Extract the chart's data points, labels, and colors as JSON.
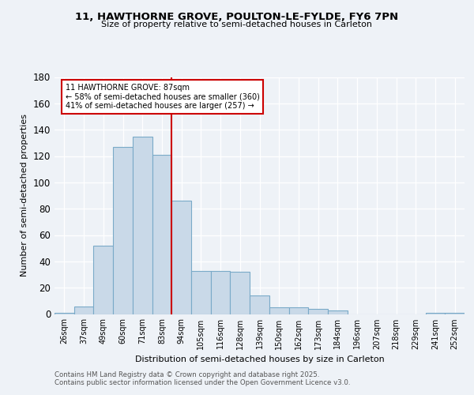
{
  "title1": "11, HAWTHORNE GROVE, POULTON-LE-FYLDE, FY6 7PN",
  "title2": "Size of property relative to semi-detached houses in Carleton",
  "xlabel": "Distribution of semi-detached houses by size in Carleton",
  "ylabel": "Number of semi-detached properties",
  "categories": [
    "26sqm",
    "37sqm",
    "49sqm",
    "60sqm",
    "71sqm",
    "83sqm",
    "94sqm",
    "105sqm",
    "116sqm",
    "128sqm",
    "139sqm",
    "150sqm",
    "162sqm",
    "173sqm",
    "184sqm",
    "196sqm",
    "207sqm",
    "218sqm",
    "229sqm",
    "241sqm",
    "252sqm"
  ],
  "values": [
    1,
    6,
    52,
    127,
    135,
    121,
    86,
    33,
    33,
    32,
    14,
    5,
    5,
    4,
    3,
    0,
    0,
    0,
    0,
    1,
    1
  ],
  "bar_color": "#c9d9e8",
  "bar_edge_color": "#7aaac8",
  "vline_x": 5.5,
  "annotation_title": "11 HAWTHORNE GROVE: 87sqm",
  "annotation_line1": "← 58% of semi-detached houses are smaller (360)",
  "annotation_line2": "41% of semi-detached houses are larger (257) →",
  "vline_color": "#cc0000",
  "annotation_box_color": "#ffffff",
  "annotation_box_edge": "#cc0000",
  "ylim": [
    0,
    180
  ],
  "yticks": [
    0,
    20,
    40,
    60,
    80,
    100,
    120,
    140,
    160,
    180
  ],
  "footer1": "Contains HM Land Registry data © Crown copyright and database right 2025.",
  "footer2": "Contains public sector information licensed under the Open Government Licence v3.0.",
  "bg_color": "#eef2f7"
}
